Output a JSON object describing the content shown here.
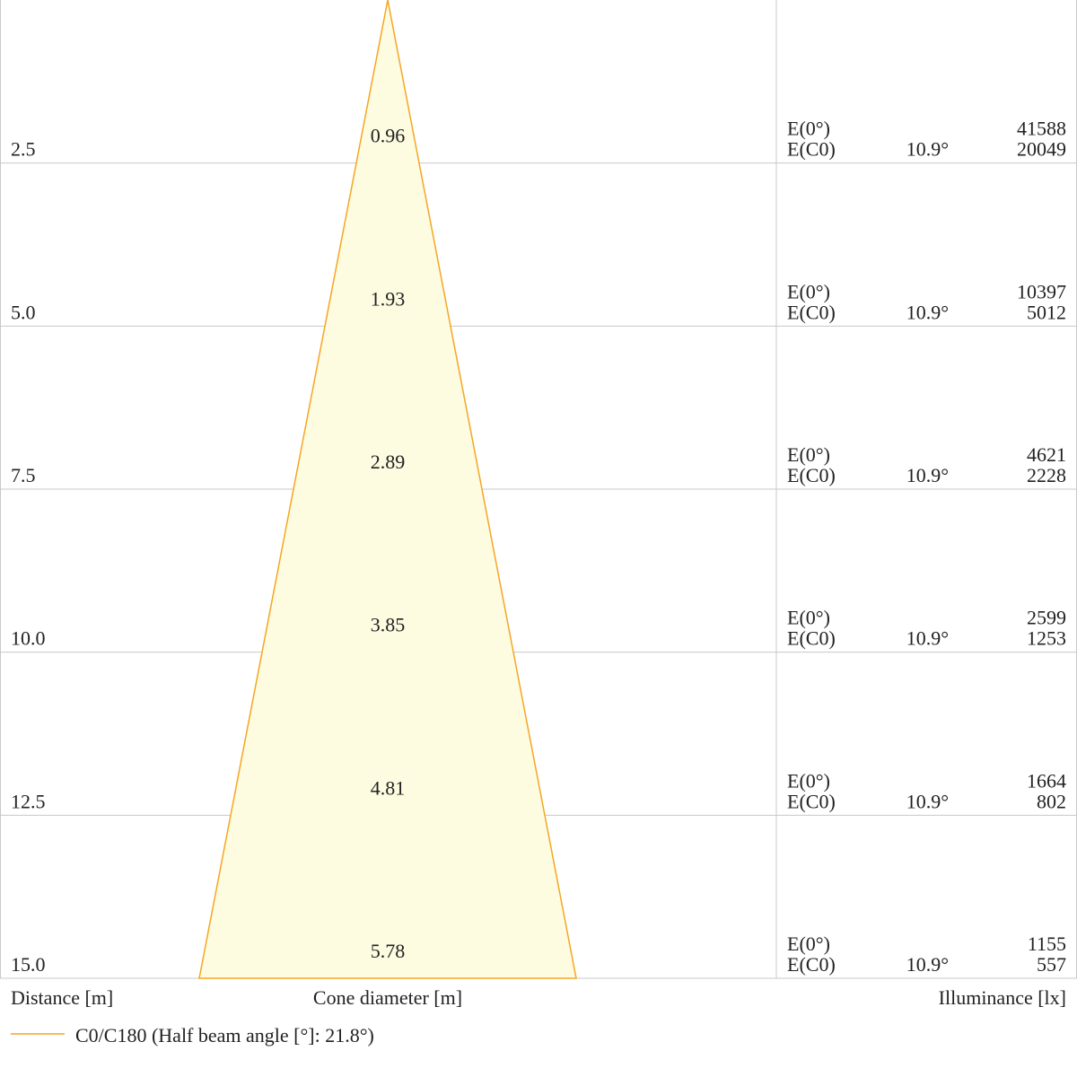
{
  "chart_data": {
    "type": "cone",
    "series_name": "C0/C180",
    "legend_text": "C0/C180 (Half beam angle [°]: 21.8°)",
    "half_beam_angle_deg": 21.8,
    "cone_color": "#f5a623",
    "cone_fill": "#fdfbe0",
    "grid_color": "#c8c8c8",
    "distance_max_m": 15.0,
    "xlabel_distance": "Distance [m]",
    "xlabel_cone": "Cone diameter [m]",
    "xlabel_illuminance": "Illuminance [lx]",
    "rows": [
      {
        "distance": "2.5",
        "diameter": "0.96",
        "label_center": "E(0°)",
        "label_c0": "E(C0)",
        "angle": "10.9°",
        "e_center": "41588",
        "e_c0": "20049"
      },
      {
        "distance": "5.0",
        "diameter": "1.93",
        "label_center": "E(0°)",
        "label_c0": "E(C0)",
        "angle": "10.9°",
        "e_center": "10397",
        "e_c0": "5012"
      },
      {
        "distance": "7.5",
        "diameter": "2.89",
        "label_center": "E(0°)",
        "label_c0": "E(C0)",
        "angle": "10.9°",
        "e_center": "4621",
        "e_c0": "2228"
      },
      {
        "distance": "10.0",
        "diameter": "3.85",
        "label_center": "E(0°)",
        "label_c0": "E(C0)",
        "angle": "10.9°",
        "e_center": "2599",
        "e_c0": "1253"
      },
      {
        "distance": "12.5",
        "diameter": "4.81",
        "label_center": "E(0°)",
        "label_c0": "E(C0)",
        "angle": "10.9°",
        "e_center": "1664",
        "e_c0": "802"
      },
      {
        "distance": "15.0",
        "diameter": "5.78",
        "label_center": "E(0°)",
        "label_c0": "E(C0)",
        "angle": "10.9°",
        "e_center": "1155",
        "e_c0": "557"
      }
    ]
  }
}
